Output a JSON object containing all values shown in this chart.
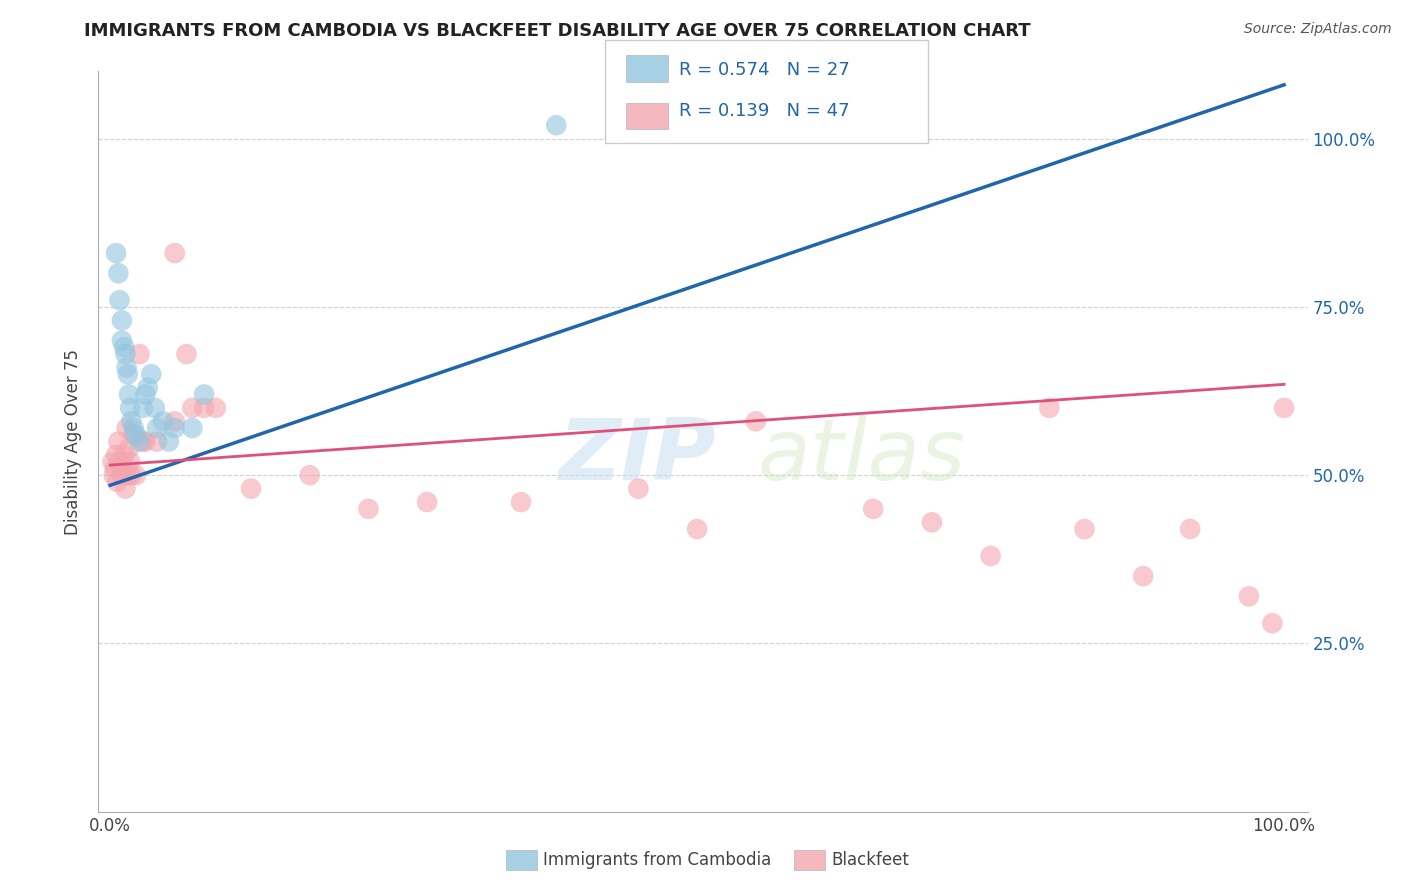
{
  "title": "IMMIGRANTS FROM CAMBODIA VS BLACKFEET DISABILITY AGE OVER 75 CORRELATION CHART",
  "source": "Source: ZipAtlas.com",
  "ylabel": "Disability Age Over 75",
  "xlim": [
    -0.01,
    1.02
  ],
  "ylim": [
    0.0,
    1.1
  ],
  "background_color": "#ffffff",
  "watermark_zip": "ZIP",
  "watermark_atlas": "atlas",
  "blue_color": "#92c5de",
  "pink_color": "#f4a6b0",
  "blue_line_color": "#2166ac",
  "pink_line_color": "#e0507a",
  "grid_color": "#cccccc",
  "blue_scatter_x": [
    0.005,
    0.007,
    0.008,
    0.01,
    0.01,
    0.012,
    0.013,
    0.014,
    0.015,
    0.016,
    0.017,
    0.018,
    0.02,
    0.022,
    0.025,
    0.028,
    0.03,
    0.032,
    0.035,
    0.038,
    0.04,
    0.045,
    0.05,
    0.055,
    0.07,
    0.08,
    0.38
  ],
  "blue_scatter_y": [
    0.83,
    0.8,
    0.76,
    0.73,
    0.7,
    0.69,
    0.68,
    0.66,
    0.65,
    0.62,
    0.6,
    0.58,
    0.57,
    0.56,
    0.55,
    0.6,
    0.62,
    0.63,
    0.65,
    0.6,
    0.57,
    0.58,
    0.55,
    0.57,
    0.57,
    0.62,
    1.02
  ],
  "pink_scatter_x": [
    0.002,
    0.003,
    0.004,
    0.005,
    0.006,
    0.007,
    0.008,
    0.009,
    0.01,
    0.011,
    0.012,
    0.013,
    0.014,
    0.015,
    0.016,
    0.017,
    0.018,
    0.02,
    0.022,
    0.025,
    0.028,
    0.03,
    0.04,
    0.055,
    0.065,
    0.07,
    0.08,
    0.09,
    0.12,
    0.17,
    0.22,
    0.27,
    0.35,
    0.45,
    0.5,
    0.55,
    0.65,
    0.7,
    0.75,
    0.8,
    0.83,
    0.88,
    0.92,
    0.97,
    0.99,
    1.0,
    0.055
  ],
  "pink_scatter_y": [
    0.52,
    0.5,
    0.51,
    0.53,
    0.49,
    0.55,
    0.52,
    0.51,
    0.5,
    0.52,
    0.53,
    0.48,
    0.57,
    0.5,
    0.54,
    0.52,
    0.5,
    0.56,
    0.5,
    0.68,
    0.55,
    0.55,
    0.55,
    0.58,
    0.68,
    0.6,
    0.6,
    0.6,
    0.48,
    0.5,
    0.45,
    0.46,
    0.46,
    0.48,
    0.42,
    0.58,
    0.45,
    0.43,
    0.38,
    0.6,
    0.42,
    0.35,
    0.42,
    0.32,
    0.28,
    0.6,
    0.83
  ],
  "blue_trend_x": [
    0.0,
    1.0
  ],
  "blue_trend_y": [
    0.485,
    1.08
  ],
  "pink_trend_x": [
    0.0,
    1.0
  ],
  "pink_trend_y": [
    0.515,
    0.635
  ],
  "legend_r1": "R = 0.574",
  "legend_n1": "N = 27",
  "legend_r2": "R = 0.139",
  "legend_n2": "N = 47",
  "ytick_vals": [
    0.25,
    0.5,
    0.75,
    1.0
  ],
  "ytick_labels": [
    "25.0%",
    "50.0%",
    "75.0%",
    "100.0%"
  ],
  "xtick_vals": [
    0.0,
    0.25,
    0.5,
    0.75,
    1.0
  ],
  "xtick_labels": [
    "0.0%",
    "",
    "",
    "",
    "100.0%"
  ]
}
